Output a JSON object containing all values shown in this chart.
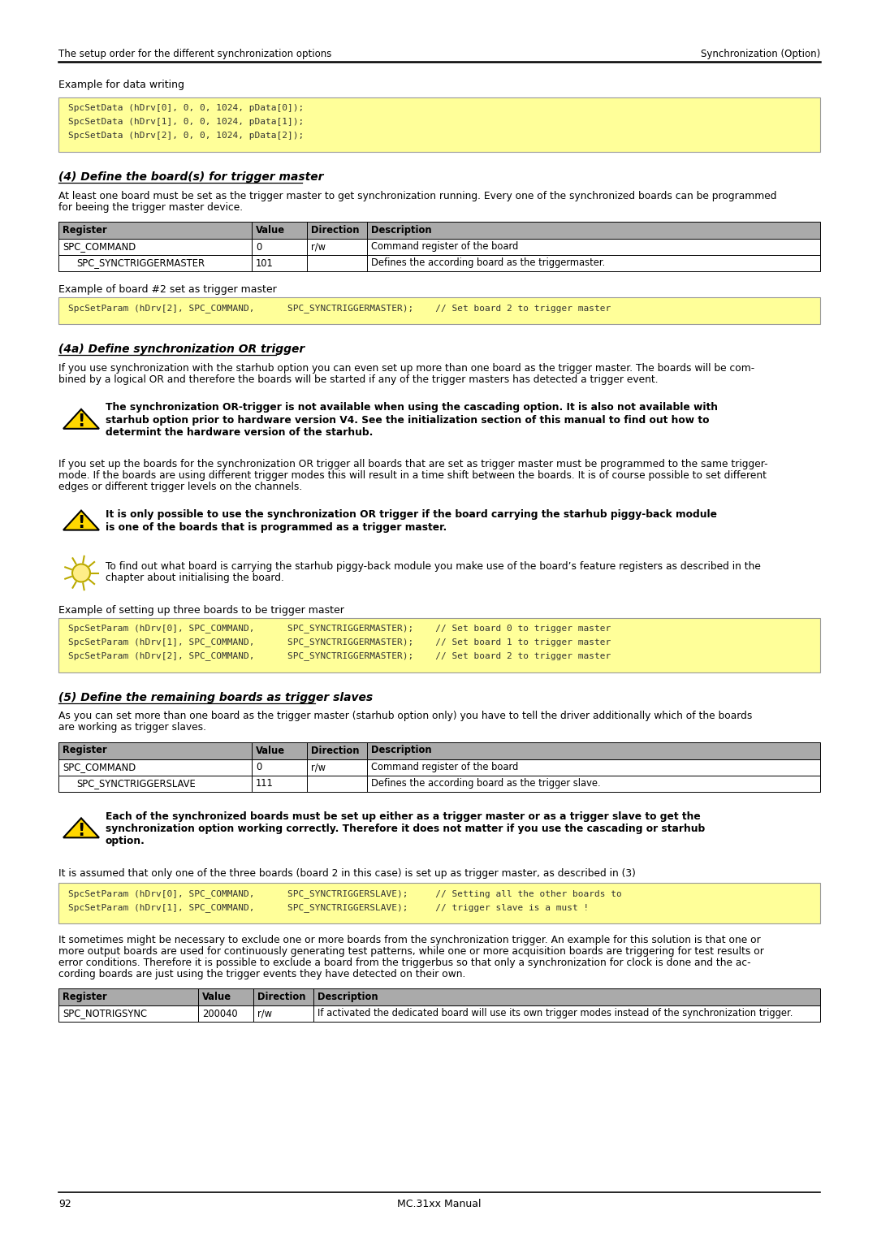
{
  "header_left": "The setup order for the different synchronization options",
  "header_right": "Synchronization (Option)",
  "page_number": "92",
  "page_center": "MC.31xx Manual",
  "section_example_data_writing": "Example for data writing",
  "code_block1": [
    "SpcSetData (hDrv[0], 0, 0, 1024, pData[0]);",
    "SpcSetData (hDrv[1], 0, 0, 1024, pData[1]);",
    "SpcSetData (hDrv[2], 0, 0, 1024, pData[2]);"
  ],
  "section4_title": "(4) Define the board(s) for trigger master",
  "section4_body": "At least one board must be set as the trigger master to get synchronization running. Every one of the synchronized boards can be programmed\nfor beeing the trigger master device.",
  "table1_headers": [
    "Register",
    "Value",
    "Direction",
    "Description"
  ],
  "table1_rows": [
    [
      "SPC_COMMAND",
      "0",
      "r/w",
      "Command register of the board"
    ],
    [
      "SPC_SYNCTRIGGERMASTER",
      "101",
      "",
      "Defines the according board as the triggermaster."
    ]
  ],
  "table1_subrow": [
    false,
    true
  ],
  "example_board2_label": "Example of board #2 set as trigger master",
  "code_block2": [
    "SpcSetParam (hDrv[2], SPC_COMMAND,      SPC_SYNCTRIGGERMASTER);    // Set board 2 to trigger master"
  ],
  "section4a_title": "(4a) Define synchronization OR trigger",
  "section4a_body1_lines": [
    "If you use synchronization with the starhub option you can even set up more than one board as the trigger master. The boards will be com-",
    "bined by a logical OR and therefore the boards will be started if any of the trigger masters has detected a trigger event."
  ],
  "warning1_lines": [
    "The synchronization OR-trigger is not available when using the cascading option. It is also not available with",
    "starhub option prior to hardware version V4. See the initialization section of this manual to find out how to",
    "determint the hardware version of the starhub."
  ],
  "section4a_body2_lines": [
    "If you set up the boards for the synchronization OR trigger all boards that are set as trigger master must be programmed to the same trigger-",
    "mode. If the boards are using different trigger modes this will result in a time shift between the boards. It is of course possible to set different",
    "edges or different trigger levels on the channels."
  ],
  "warning2_lines": [
    "It is only possible to use the synchronization OR trigger if the board carrying the starhub piggy-back module",
    "is one of the boards that is programmed as a trigger master."
  ],
  "info_lines": [
    "To find out what board is carrying the starhub piggy-back module you make use of the board’s feature registers as described in the",
    "chapter about initialising the board."
  ],
  "example_three_boards_label": "Example of setting up three boards to be trigger master",
  "code_block3": [
    "SpcSetParam (hDrv[0], SPC_COMMAND,      SPC_SYNCTRIGGERMASTER);    // Set board 0 to trigger master",
    "SpcSetParam (hDrv[1], SPC_COMMAND,      SPC_SYNCTRIGGERMASTER);    // Set board 1 to trigger master",
    "SpcSetParam (hDrv[2], SPC_COMMAND,      SPC_SYNCTRIGGERMASTER);    // Set board 2 to trigger master"
  ],
  "section5_title": "(5) Define the remaining boards as trigger slaves",
  "section5_body_lines": [
    "As you can set more than one board as the trigger master (starhub option only) you have to tell the driver additionally which of the boards",
    "are working as trigger slaves."
  ],
  "table2_headers": [
    "Register",
    "Value",
    "Direction",
    "Description"
  ],
  "table2_rows": [
    [
      "SPC_COMMAND",
      "0",
      "r/w",
      "Command register of the board"
    ],
    [
      "SPC_SYNCTRIGGERSLAVE",
      "111",
      "",
      "Defines the according board as the trigger slave."
    ]
  ],
  "table2_subrow": [
    false,
    true
  ],
  "warning3_lines": [
    "Each of the synchronized boards must be set up either as a trigger master or as a trigger slave to get the",
    "synchronization option working correctly. Therefore it does not matter if you use the cascading or starhub",
    "option."
  ],
  "section5_body2": "It is assumed that only one of the three boards (board 2 in this case) is set up as trigger master, as described in (3)",
  "code_block4": [
    "SpcSetParam (hDrv[0], SPC_COMMAND,      SPC_SYNCTRIGGERSLAVE);     // Setting all the other boards to",
    "SpcSetParam (hDrv[1], SPC_COMMAND,      SPC_SYNCTRIGGERSLAVE);     // trigger slave is a must !"
  ],
  "section5_body3_lines": [
    "It sometimes might be necessary to exclude one or more boards from the synchronization trigger. An example for this solution is that one or",
    "more output boards are used for continuously generating test patterns, while one or more acquisition boards are triggering for test results or",
    "error conditions. Therefore it is possible to exclude a board from the triggerbus so that only a synchronization for clock is done and the ac-",
    "cording boards are just using the trigger events they have detected on their own."
  ],
  "table3_headers": [
    "Register",
    "Value",
    "Direction",
    "Description"
  ],
  "table3_rows": [
    [
      "SPC_NOTRIGSYNC",
      "200040",
      "r/w",
      "If activated the dedicated board will use its own trigger modes instead of the synchronization trigger."
    ]
  ],
  "table3_subrow": [
    false
  ],
  "code_bg": "#FFFF99",
  "table_header_bg": "#AAAAAA",
  "border_color": "#000000"
}
